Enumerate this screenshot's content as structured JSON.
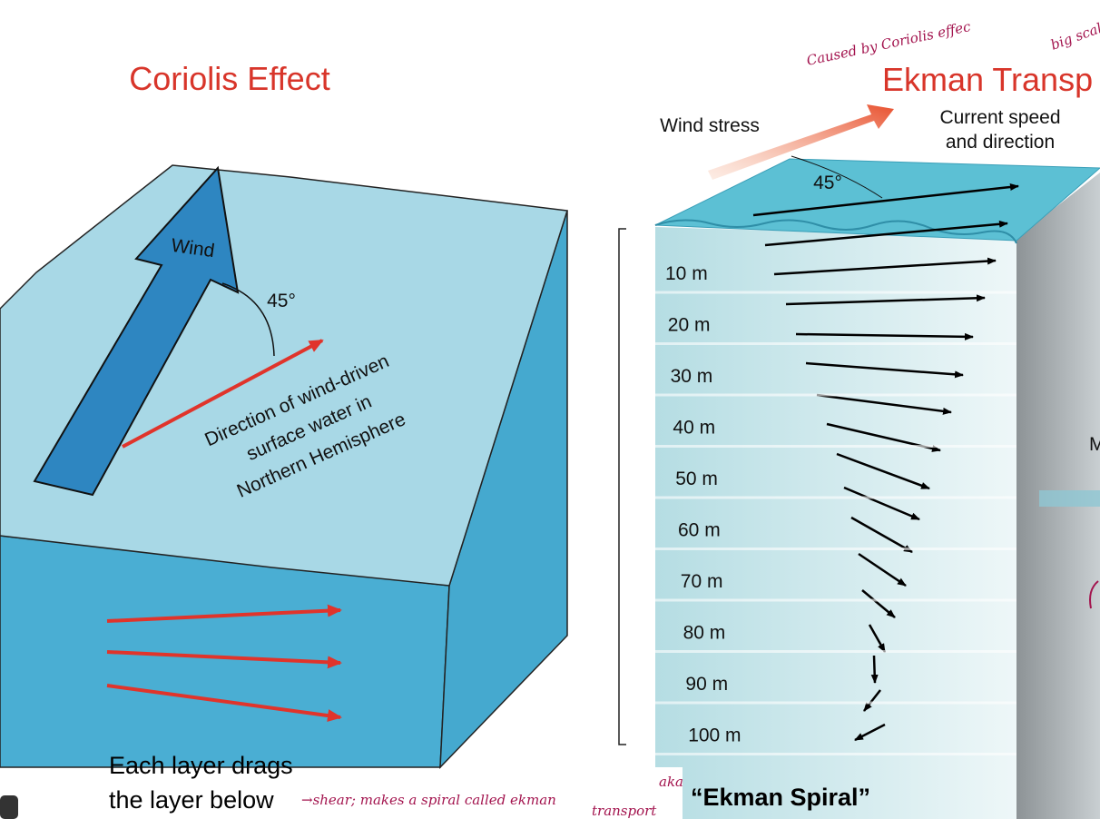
{
  "slide": {
    "left_title": "Coriolis Effect",
    "right_title": "Ekman Transp"
  },
  "left_diagram": {
    "wind": "Wind",
    "angle": "45°",
    "direction_label": [
      "Direction of wind-driven",
      "surface water in",
      "Northern Hemisphere"
    ],
    "caption": [
      "Each layer drags",
      "the layer below"
    ]
  },
  "right_diagram": {
    "wind_stress": "Wind stress",
    "current_label": [
      "Current speed",
      "and direction"
    ],
    "angle": "45°",
    "depths": [
      "10 m",
      "20 m",
      "30 m",
      "40 m",
      "50 m",
      "60 m",
      "70 m",
      "80 m",
      "90 m",
      "100 m"
    ],
    "caption": "“Ekman Spiral”",
    "edge_label": "M"
  },
  "handwritten": {
    "caused_by": "Caused by Coriolis effec",
    "big_scale": "big scal",
    "aka": "aka",
    "shear_note": "→shear; makes a spiral called ekman",
    "shear_note_2": "transport"
  }
}
